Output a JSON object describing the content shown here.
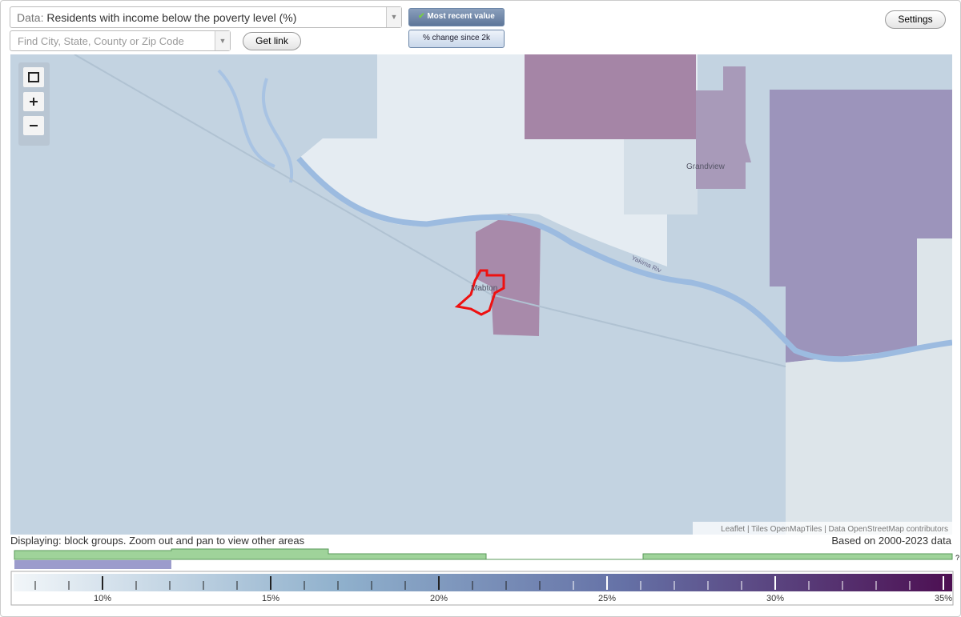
{
  "controls": {
    "data_label": "Data:",
    "data_value": "Residents with income below the poverty level (%)",
    "search_placeholder": "Find City, State, County or Zip Code",
    "get_link": "Get link",
    "most_recent": "Most recent value",
    "change": "% change since 2k",
    "settings": "Settings"
  },
  "map": {
    "places": [
      "Grandview",
      "Mabton"
    ],
    "river": "Yakima Riv",
    "attribution": "Leaflet | Tiles OpenMapTiles | Data OpenStreetMap contributors"
  },
  "footer": {
    "displaying": "Displaying: block groups. Zoom out and pan to view other areas",
    "based_on": "Based on 2000-2023 data"
  },
  "legend": {
    "labels": [
      "10%",
      "15%",
      "20%",
      "25%",
      "30%",
      "35%"
    ],
    "help": "?"
  }
}
